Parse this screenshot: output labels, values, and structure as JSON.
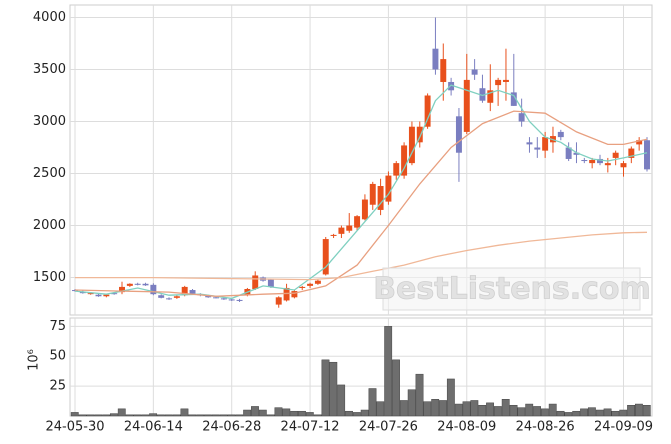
{
  "chart_data": {
    "type": "candlestick",
    "categories": [
      "24-05-30",
      null,
      null,
      null,
      null,
      null,
      null,
      null,
      null,
      null,
      "24-06-14",
      null,
      null,
      null,
      null,
      null,
      null,
      null,
      null,
      null,
      "24-06-28",
      null,
      null,
      null,
      null,
      null,
      null,
      null,
      null,
      null,
      "24-07-12",
      null,
      null,
      null,
      null,
      null,
      null,
      null,
      null,
      null,
      "24-07-26",
      null,
      null,
      null,
      null,
      null,
      null,
      null,
      null,
      null,
      "24-08-09",
      null,
      null,
      null,
      null,
      null,
      null,
      null,
      null,
      null,
      "24-08-26",
      null,
      null,
      null,
      null,
      null,
      null,
      null,
      null,
      null,
      "24-09-09",
      null,
      null,
      null
    ],
    "candles": [
      [
        1380,
        1390,
        1365,
        1370
      ],
      [
        1365,
        1375,
        1345,
        1350
      ],
      [
        1345,
        1360,
        1335,
        1350
      ],
      [
        1335,
        1345,
        1315,
        1320
      ],
      [
        1320,
        1340,
        1310,
        1335
      ],
      [
        1350,
        1360,
        1335,
        1340
      ],
      [
        1360,
        1460,
        1340,
        1410
      ],
      [
        1420,
        1445,
        1410,
        1440
      ],
      [
        1440,
        1450,
        1425,
        1430
      ],
      [
        1440,
        1450,
        1420,
        1425
      ],
      [
        1430,
        1445,
        1330,
        1340
      ],
      [
        1330,
        1340,
        1300,
        1305
      ],
      [
        1300,
        1310,
        1285,
        1295
      ],
      [
        1305,
        1330,
        1295,
        1320
      ],
      [
        1330,
        1420,
        1320,
        1410
      ],
      [
        1380,
        1390,
        1340,
        1345
      ],
      [
        1340,
        1350,
        1320,
        1330
      ],
      [
        1325,
        1335,
        1305,
        1310
      ],
      [
        1310,
        1320,
        1300,
        1305
      ],
      [
        1300,
        1310,
        1285,
        1290
      ],
      [
        1290,
        1300,
        1275,
        1280
      ],
      [
        1285,
        1295,
        1265,
        1275
      ],
      [
        1330,
        1400,
        1320,
        1390
      ],
      [
        1390,
        1560,
        1380,
        1520
      ],
      [
        1500,
        1510,
        1460,
        1470
      ],
      [
        1480,
        1490,
        1400,
        1410
      ],
      [
        1240,
        1320,
        1210,
        1310
      ],
      [
        1280,
        1440,
        1270,
        1400
      ],
      [
        1310,
        1380,
        1300,
        1370
      ],
      [
        1400,
        1420,
        1380,
        1410
      ],
      [
        1420,
        1450,
        1400,
        1440
      ],
      [
        1440,
        1480,
        1430,
        1470
      ],
      [
        1530,
        1890,
        1520,
        1870
      ],
      [
        1900,
        1920,
        1880,
        1910
      ],
      [
        1920,
        2000,
        1880,
        1980
      ],
      [
        1950,
        2120,
        1930,
        2000
      ],
      [
        1980,
        2100,
        1950,
        2090
      ],
      [
        2060,
        2300,
        2050,
        2250
      ],
      [
        2200,
        2420,
        2150,
        2400
      ],
      [
        2150,
        2450,
        2100,
        2380
      ],
      [
        2230,
        2520,
        2200,
        2480
      ],
      [
        2480,
        2620,
        2440,
        2600
      ],
      [
        2480,
        2800,
        2450,
        2770
      ],
      [
        2600,
        3000,
        2580,
        2950
      ],
      [
        2800,
        3000,
        2750,
        2950
      ],
      [
        2950,
        3270,
        2930,
        3250
      ],
      [
        3700,
        4000,
        3450,
        3500
      ],
      [
        3380,
        3750,
        3200,
        3600
      ],
      [
        3380,
        3420,
        3250,
        3300
      ],
      [
        3050,
        3130,
        2420,
        2700
      ],
      [
        2900,
        3650,
        2880,
        3400
      ],
      [
        3500,
        3600,
        3400,
        3450
      ],
      [
        3320,
        3450,
        3180,
        3200
      ],
      [
        3180,
        3550,
        3100,
        3300
      ],
      [
        3350,
        3420,
        3150,
        3400
      ],
      [
        3380,
        3700,
        3200,
        3400
      ],
      [
        3280,
        3650,
        3150,
        3150
      ],
      [
        3080,
        3220,
        2950,
        3000
      ],
      [
        2800,
        2850,
        2700,
        2780
      ],
      [
        2750,
        2850,
        2650,
        2730
      ],
      [
        2720,
        2900,
        2650,
        2850
      ],
      [
        2800,
        2950,
        2700,
        2860
      ],
      [
        2900,
        2920,
        2820,
        2850
      ],
      [
        2750,
        2800,
        2620,
        2640
      ],
      [
        2700,
        2800,
        2600,
        2680
      ],
      [
        2630,
        2650,
        2600,
        2620
      ],
      [
        2600,
        2650,
        2550,
        2630
      ],
      [
        2640,
        2680,
        2580,
        2600
      ],
      [
        2580,
        2650,
        2510,
        2600
      ],
      [
        2650,
        2720,
        2580,
        2700
      ],
      [
        2560,
        2620,
        2470,
        2600
      ],
      [
        2650,
        2760,
        2600,
        2740
      ],
      [
        2780,
        2850,
        2720,
        2820
      ],
      [
        2820,
        2850,
        2520,
        2540
      ]
    ],
    "up_color": "#e8501c",
    "down_color": "#7a7ec0",
    "lines": [
      {
        "color": "#7fd0c0",
        "x": [
          0,
          4,
          8,
          12,
          16,
          20,
          24,
          28,
          32,
          36,
          40,
          42,
          44,
          46,
          48,
          50,
          52,
          54,
          56,
          58,
          60,
          62,
          64,
          66,
          68,
          70,
          73
        ],
        "values": [
          1370,
          1340,
          1400,
          1330,
          1340,
          1300,
          1420,
          1380,
          1600,
          1950,
          2300,
          2550,
          2850,
          3200,
          3350,
          3300,
          3250,
          3300,
          3250,
          3000,
          2850,
          2800,
          2700,
          2640,
          2620,
          2650,
          2700
        ]
      },
      {
        "color": "#e8a080",
        "x": [
          0,
          6,
          12,
          18,
          24,
          28,
          32,
          36,
          40,
          44,
          48,
          52,
          56,
          60,
          64,
          68,
          70,
          73
        ],
        "values": [
          1380,
          1370,
          1360,
          1320,
          1340,
          1350,
          1420,
          1620,
          2000,
          2400,
          2750,
          2980,
          3100,
          3080,
          2900,
          2780,
          2780,
          2830
        ]
      },
      {
        "color": "#f0b898",
        "x": [
          0,
          10,
          20,
          30,
          34,
          38,
          42,
          46,
          50,
          54,
          58,
          62,
          66,
          70,
          73
        ],
        "values": [
          1500,
          1500,
          1490,
          1480,
          1500,
          1560,
          1620,
          1700,
          1760,
          1810,
          1850,
          1880,
          1910,
          1930,
          1935
        ]
      }
    ],
    "ylim": [
      1140,
      4120
    ],
    "yticks": [
      1500,
      2000,
      2500,
      3000,
      3500,
      4000
    ],
    "volume": [
      3,
      1,
      1,
      1,
      1,
      2,
      6,
      1,
      1,
      1,
      2,
      1,
      1,
      1,
      6,
      1,
      1,
      1,
      1,
      1,
      1,
      1,
      5,
      8,
      5,
      1,
      7,
      6,
      4,
      4,
      3,
      1,
      47,
      45,
      26,
      4,
      3,
      5,
      23,
      12,
      75,
      47,
      13,
      22,
      35,
      12,
      14,
      13,
      31,
      10,
      12,
      13,
      9,
      11,
      8,
      14,
      9,
      7,
      10,
      8,
      6,
      10,
      4,
      3,
      4,
      6,
      7,
      5,
      6,
      4,
      5,
      9,
      10,
      9
    ],
    "volume_color": "#6e6e6e",
    "volume_ylim": [
      0,
      82
    ],
    "volume_yticks": [
      25,
      50,
      75
    ],
    "volume_unit": "10⁶",
    "watermark": "BestListens.com",
    "grid": true
  }
}
